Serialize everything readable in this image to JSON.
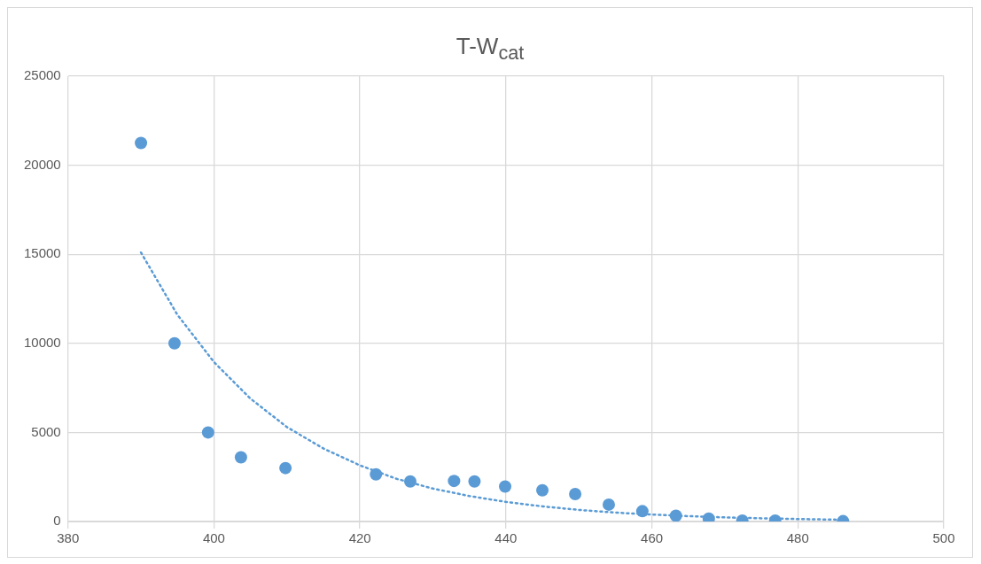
{
  "chart_data": {
    "type": "scatter",
    "title": "T-W$_{cat}$",
    "series": [
      {
        "color": "#5b9bd5",
        "marker": "circle",
        "x": [
          390,
          394.6,
          399.2,
          403.7,
          409.8,
          422.2,
          426.9,
          432.9,
          435.7,
          439.9,
          445,
          449.5,
          454.1,
          458.7,
          463.3,
          467.8,
          472.4,
          476.9,
          486.2
        ],
        "values": [
          21250,
          10000,
          5000,
          3600,
          3000,
          2650,
          2250,
          2280,
          2250,
          1960,
          1750,
          1540,
          950,
          580,
          320,
          160,
          50,
          50,
          20
        ]
      },
      {
        "type": "line",
        "color": "#5b9bd5",
        "line_style": "dotted",
        "marker": "none",
        "x": [
          390,
          395,
          400,
          405,
          410,
          415,
          420,
          425,
          430,
          435,
          440,
          445,
          450,
          455,
          460,
          465,
          470,
          475,
          480,
          486
        ],
        "values": [
          15100,
          11600,
          8950,
          6900,
          5300,
          4100,
          3150,
          2400,
          1850,
          1430,
          1100,
          850,
          650,
          500,
          390,
          300,
          230,
          180,
          140,
          100
        ]
      }
    ],
    "xlim": [
      380,
      500
    ],
    "xticks": [
      380,
      400,
      420,
      440,
      460,
      480,
      500
    ],
    "ylim": [
      0,
      25000
    ],
    "yticks": [
      0,
      5000,
      10000,
      15000,
      20000,
      25000
    ],
    "grid": true,
    "legend": false
  }
}
